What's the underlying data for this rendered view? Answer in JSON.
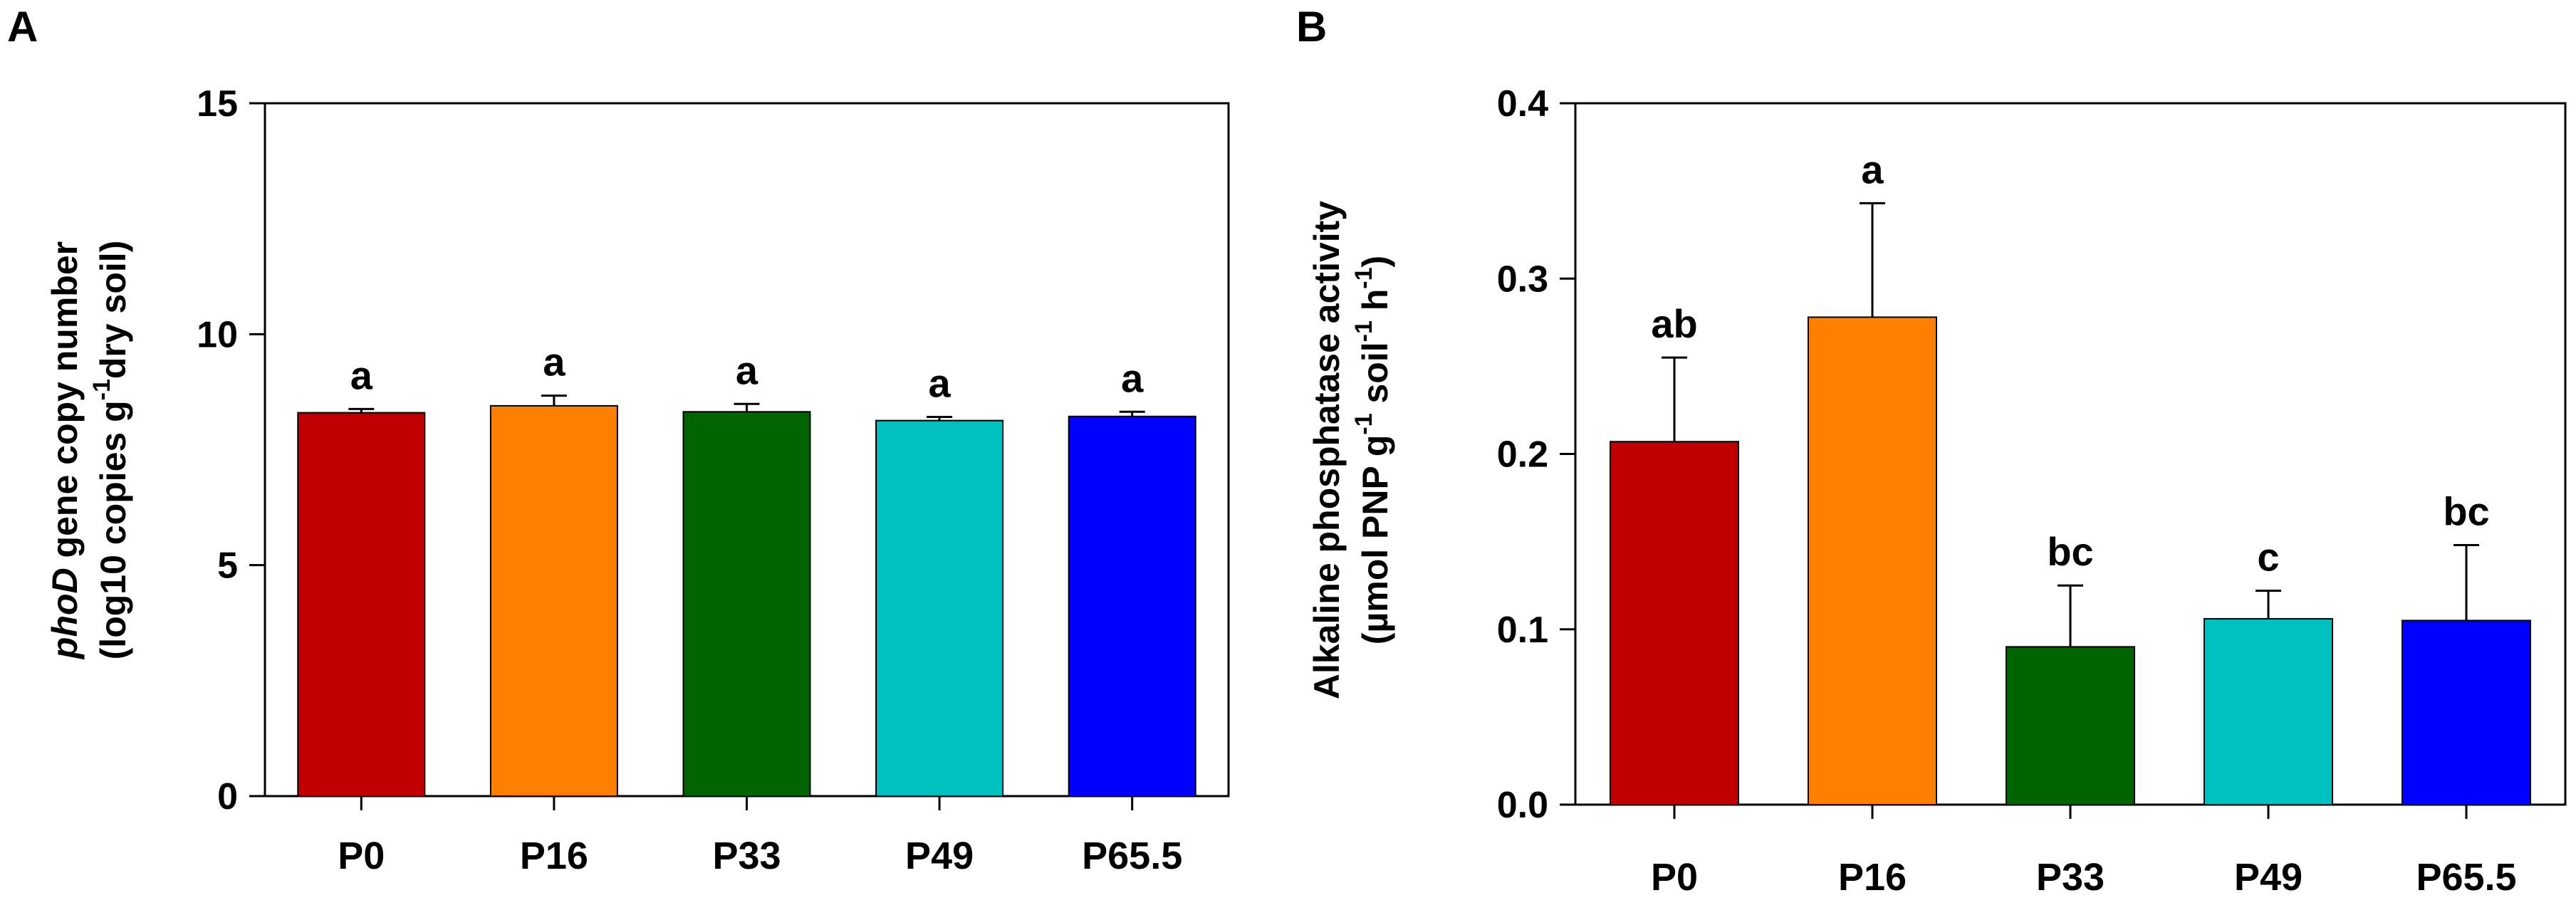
{
  "chart_data": [
    {
      "panel": "A",
      "type": "bar",
      "categories": [
        "P0",
        "P16",
        "P33",
        "P49",
        "P65.5"
      ],
      "values": [
        8.3,
        8.45,
        8.32,
        8.13,
        8.22
      ],
      "errors": [
        0.08,
        0.22,
        0.17,
        0.08,
        0.1
      ],
      "significance": [
        "a",
        "a",
        "a",
        "a",
        "a"
      ],
      "colors": [
        "#C00000",
        "#FF8000",
        "#006400",
        "#00C0C0",
        "#0000FF"
      ],
      "ylabel": {
        "line1_italic": "phoD",
        "line1_rest": " gene copy number",
        "line2_before": "(log10 copies g",
        "line2_sup": "-1",
        "line2_after": "dry soil)"
      },
      "ylim": [
        0,
        15
      ],
      "yticks": [
        "0",
        "5",
        "10",
        "15"
      ],
      "grid": false
    },
    {
      "panel": "B",
      "type": "bar",
      "categories": [
        "P0",
        "P16",
        "P33",
        "P49",
        "P65.5"
      ],
      "values": [
        0.207,
        0.278,
        0.09,
        0.106,
        0.105
      ],
      "errors": [
        0.048,
        0.065,
        0.035,
        0.016,
        0.043
      ],
      "significance": [
        "ab",
        "a",
        "bc",
        "c",
        "bc"
      ],
      "colors": [
        "#C00000",
        "#FF8000",
        "#006400",
        "#00C0C0",
        "#0000FF"
      ],
      "ylabel": {
        "line1": "Alkaline phosphatase activity",
        "line2_before": "(µmol PNP g",
        "line2_sup1": "-1",
        "line2_mid": " soil",
        "line2_sup2": "-1",
        "line2_mid2": " h",
        "line2_sup3": "-1",
        "line2_after": ")"
      },
      "ylim": [
        0,
        0.4
      ],
      "yticks": [
        "0.0",
        "0.1",
        "0.2",
        "0.3",
        "0.4"
      ],
      "grid": false
    }
  ]
}
